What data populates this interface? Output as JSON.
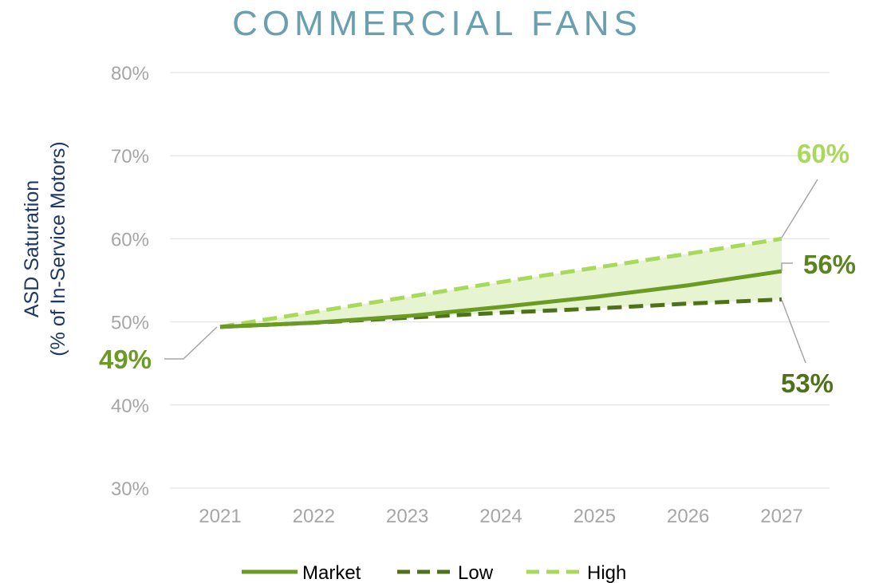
{
  "chart_data": {
    "type": "line",
    "title": "COMMERCIAL FANS",
    "ylabel": [
      "ASD Saturation",
      "(% of In-Service Motors)"
    ],
    "xlabel": "",
    "x": [
      "2021",
      "2022",
      "2023",
      "2024",
      "2025",
      "2026",
      "2027"
    ],
    "ylim": [
      30,
      80
    ],
    "yticks": [
      30,
      40,
      50,
      60,
      70,
      80
    ],
    "ytick_labels": [
      "30%",
      "40%",
      "50%",
      "60%",
      "70%",
      "80%"
    ],
    "grid": true,
    "legend_position": "bottom",
    "shaded_band": {
      "between": [
        "Low",
        "High"
      ],
      "color": "#e6f4d1"
    },
    "series": [
      {
        "name": "Market",
        "style": "solid",
        "color": "#6b9a25",
        "values": [
          49.4,
          49.9,
          50.7,
          51.8,
          53.0,
          54.4,
          56.1
        ]
      },
      {
        "name": "Low",
        "style": "dashed",
        "color": "#4f7218",
        "values": [
          49.4,
          49.9,
          50.5,
          51.1,
          51.6,
          52.2,
          52.7
        ]
      },
      {
        "name": "High",
        "style": "dashed",
        "color": "#a9d95b",
        "values": [
          49.4,
          51.2,
          53.0,
          54.8,
          56.5,
          58.2,
          60.0
        ]
      }
    ],
    "annotations": [
      {
        "text": "49%",
        "color": "#6b9a25",
        "series": "Market",
        "point": 0
      },
      {
        "text": "60%",
        "color": "#a9d95b",
        "series": "High",
        "point": 6
      },
      {
        "text": "56%",
        "color": "#5a8420",
        "series": "Market",
        "point": 6
      },
      {
        "text": "53%",
        "color": "#4f7218",
        "series": "Low",
        "point": 6
      }
    ]
  }
}
